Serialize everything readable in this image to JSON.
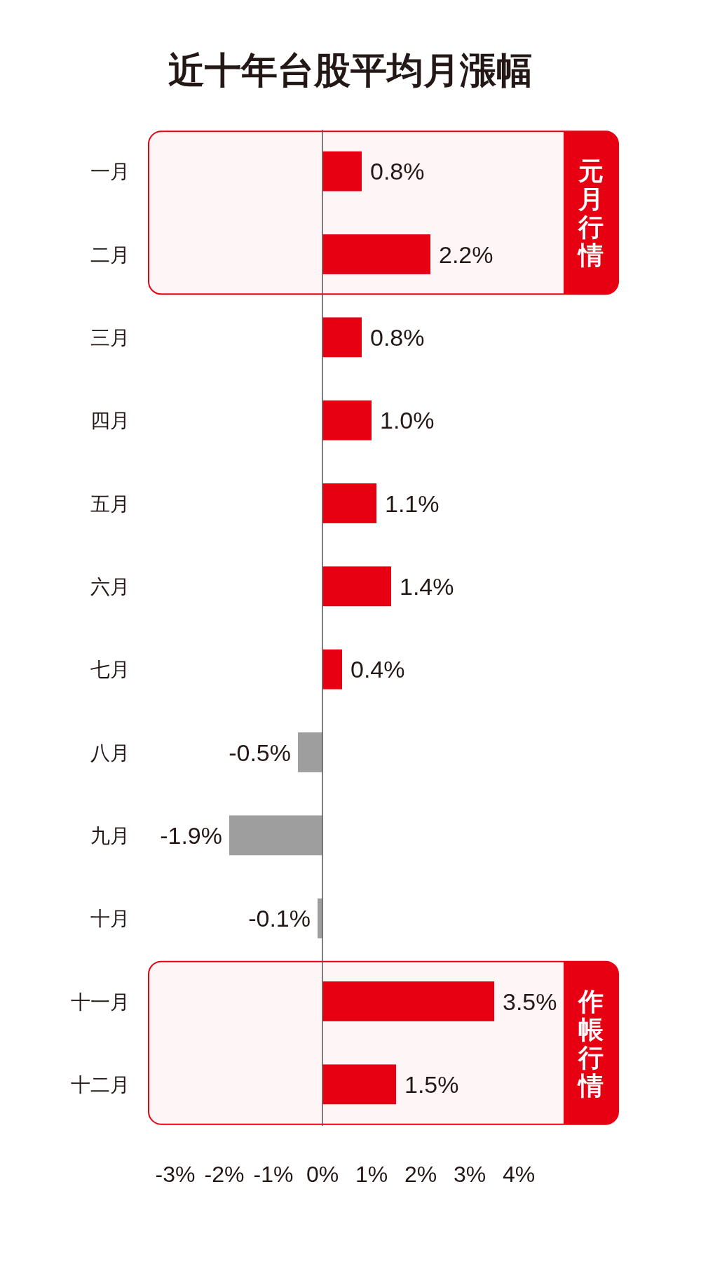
{
  "chart_data": {
    "type": "bar",
    "orientation": "horizontal",
    "title": "近十年台股平均月漲幅",
    "categories": [
      "一月",
      "二月",
      "三月",
      "四月",
      "五月",
      "六月",
      "七月",
      "八月",
      "九月",
      "十月",
      "十一月",
      "十二月"
    ],
    "values": [
      0.8,
      2.2,
      0.8,
      1.0,
      1.1,
      1.4,
      0.4,
      -0.5,
      -1.9,
      -0.1,
      3.5,
      1.5
    ],
    "colors": [
      "#e60012",
      "#e60012",
      "#e60012",
      "#e60012",
      "#e60012",
      "#e60012",
      "#e60012",
      "#9e9e9e",
      "#9e9e9e",
      "#9e9e9e",
      "#e60012",
      "#e60012"
    ],
    "value_labels": [
      "0.8%",
      "2.2%",
      "0.8%",
      "1.0%",
      "1.1%",
      "1.4%",
      "0.4%",
      "-0.5%",
      "-1.9%",
      "-0.1%",
      "3.5%",
      "1.5%"
    ],
    "xlim": [
      -3,
      4
    ],
    "xticks": [
      {
        "value": -3,
        "label": "-3%"
      },
      {
        "value": -2,
        "label": "-2%"
      },
      {
        "value": -1,
        "label": "-1%"
      },
      {
        "value": 0,
        "label": "0%"
      },
      {
        "value": 1,
        "label": "1%"
      },
      {
        "value": 2,
        "label": "2%"
      },
      {
        "value": 3,
        "label": "3%"
      },
      {
        "value": 4,
        "label": "4%"
      }
    ],
    "bands": [
      {
        "axis": "y",
        "from": "一月",
        "to": "二月",
        "label": "元月行情",
        "color": "#e60012"
      },
      {
        "axis": "y",
        "from": "十一月",
        "to": "十二月",
        "label": "作帳行情",
        "color": "#e60012"
      }
    ],
    "ref_lines": [
      {
        "axis": "x",
        "value": 0,
        "color": "#555555"
      }
    ],
    "grid": false
  }
}
